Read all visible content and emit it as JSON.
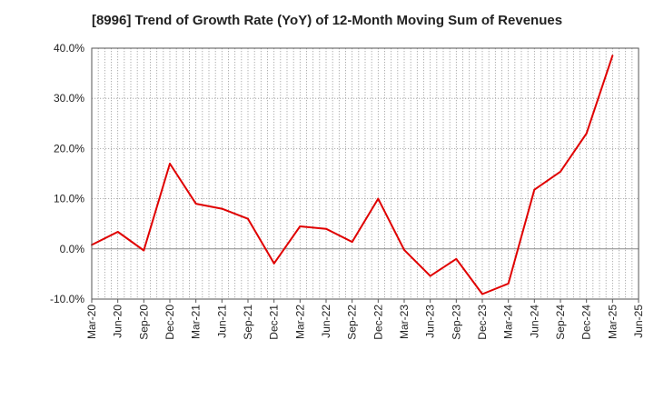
{
  "chart_data": {
    "type": "line",
    "title": "[8996]  Trend of Growth Rate (YoY) of 12-Month Moving Sum of Revenues",
    "xlabel": "",
    "ylabel": "",
    "x_ticks": [
      "Mar-20",
      "Jun-20",
      "Sep-20",
      "Dec-20",
      "Mar-21",
      "Jun-21",
      "Sep-21",
      "Dec-21",
      "Mar-22",
      "Jun-22",
      "Sep-22",
      "Dec-22",
      "Mar-23",
      "Jun-23",
      "Sep-23",
      "Dec-23",
      "Mar-24",
      "Jun-24",
      "Sep-24",
      "Dec-24",
      "Mar-25",
      "Jun-25"
    ],
    "y_ticks": [
      "40.0%",
      "30.0%",
      "20.0%",
      "10.0%",
      "0.0%",
      "-10.0%"
    ],
    "ylim": [
      -10,
      40
    ],
    "grid": true,
    "series": [
      {
        "color": "#e00000",
        "x": [
          "Mar-20",
          "Jun-20",
          "Sep-20",
          "Dec-20",
          "Mar-21",
          "Jun-21",
          "Sep-21",
          "Dec-21",
          "Mar-22",
          "Jun-22",
          "Sep-22",
          "Dec-22",
          "Mar-23",
          "Jun-23",
          "Sep-23",
          "Dec-23",
          "Mar-24",
          "Jun-24",
          "Sep-24",
          "Dec-24",
          "Mar-25"
        ],
        "values": [
          0.8,
          3.4,
          -0.3,
          17.0,
          9.0,
          8.0,
          6.0,
          -2.9,
          4.5,
          4.0,
          1.4,
          10.0,
          -0.2,
          -5.4,
          -2.0,
          -9.0,
          -6.9,
          11.8,
          15.4,
          23.0,
          38.5
        ]
      }
    ]
  }
}
